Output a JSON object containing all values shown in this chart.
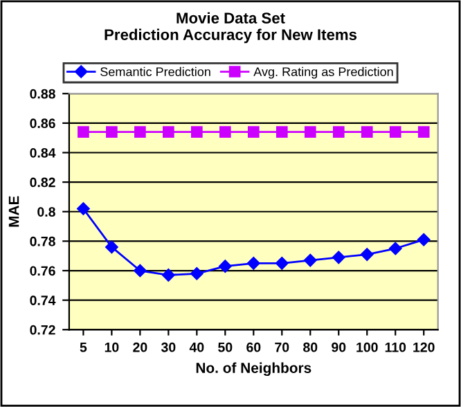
{
  "chart_data": {
    "type": "line",
    "title": "Movie Data Set\nPrediction Accuracy for New Items",
    "xlabel": "No. of Neighbors",
    "ylabel": "MAE",
    "categories": [
      "5",
      "10",
      "20",
      "30",
      "40",
      "50",
      "60",
      "70",
      "80",
      "90",
      "100",
      "110",
      "120"
    ],
    "series": [
      {
        "name": "Semantic Prediction",
        "color": "#0000ff",
        "marker": "diamond",
        "values": [
          0.802,
          0.776,
          0.76,
          0.757,
          0.758,
          0.763,
          0.765,
          0.765,
          0.767,
          0.769,
          0.771,
          0.775,
          0.781
        ]
      },
      {
        "name": "Avg. Rating as Prediction",
        "color": "#cc00ff",
        "marker": "square",
        "values": [
          0.854,
          0.854,
          0.854,
          0.854,
          0.854,
          0.854,
          0.854,
          0.854,
          0.854,
          0.854,
          0.854,
          0.854,
          0.854
        ]
      }
    ],
    "ylim": [
      0.72,
      0.88
    ],
    "yticks": [
      0.72,
      0.74,
      0.76,
      0.78,
      0.8,
      0.82,
      0.84,
      0.86,
      0.88
    ],
    "grid": "y",
    "legend": "top",
    "line_style": "solid"
  }
}
